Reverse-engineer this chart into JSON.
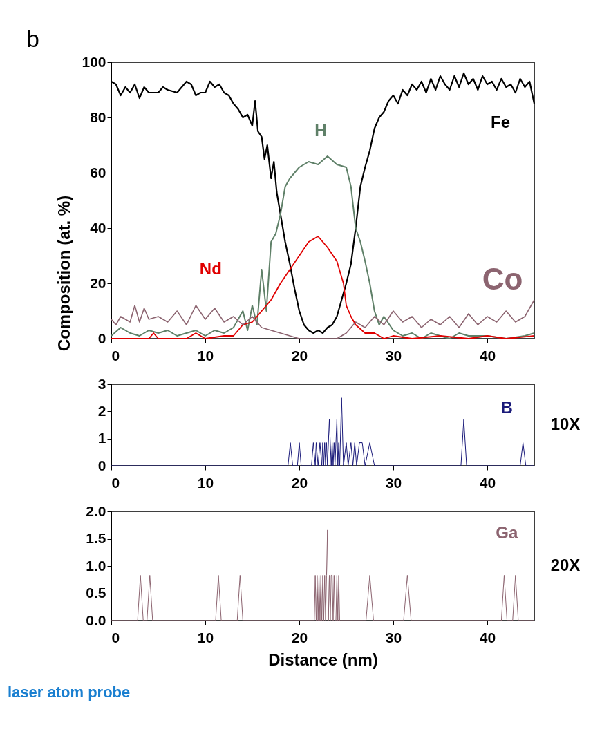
{
  "chart_data": [
    {
      "type": "line",
      "ylabel": "Composition (at. %)",
      "xlim": [
        0,
        45
      ],
      "ylim": [
        0,
        100
      ],
      "xticks": [
        0,
        10,
        20,
        30,
        40
      ],
      "yticks": [
        0,
        20,
        40,
        60,
        80,
        100
      ],
      "grid": false,
      "legend": false,
      "annotations": [
        "b"
      ],
      "series": [
        {
          "name": "Fe",
          "color": "#000000",
          "x": [
            0,
            0.5,
            1,
            1.5,
            2,
            2.5,
            3,
            3.5,
            4,
            5,
            5.5,
            6,
            7,
            8,
            8.5,
            9,
            9.5,
            10,
            10.5,
            11,
            11.5,
            12,
            12.5,
            13,
            13.5,
            14,
            14.5,
            15,
            15.3,
            15.6,
            16,
            16.3,
            16.6,
            17,
            17.3,
            17.6,
            18,
            18.5,
            19,
            19.5,
            20,
            20.5,
            21,
            21.5,
            22,
            22.5,
            23,
            23.5,
            24,
            24.5,
            25,
            25.5,
            26,
            26.5,
            27,
            27.5,
            28,
            28.5,
            29,
            29.5,
            30,
            30.5,
            31,
            31.5,
            32,
            32.5,
            33,
            33.5,
            34,
            34.5,
            35,
            35.5,
            36,
            36.5,
            37,
            37.5,
            38,
            38.5,
            39,
            39.5,
            40,
            40.5,
            41,
            41.5,
            42,
            42.5,
            43,
            43.5,
            44,
            44.5,
            45
          ],
          "values": [
            93,
            92,
            88,
            91,
            89,
            92,
            87,
            91,
            89,
            89,
            91,
            90,
            89,
            93,
            92,
            88,
            89,
            89,
            93,
            91,
            92,
            89,
            88,
            85,
            83,
            80,
            81,
            77,
            86,
            75,
            73,
            65,
            70,
            58,
            64,
            53,
            45,
            35,
            27,
            18,
            10,
            5,
            3,
            2,
            3,
            2,
            4,
            5,
            8,
            14,
            20,
            27,
            40,
            55,
            62,
            68,
            76,
            80,
            82,
            86,
            88,
            85,
            90,
            88,
            92,
            90,
            93,
            89,
            94,
            90,
            95,
            92,
            90,
            95,
            91,
            96,
            92,
            94,
            90,
            95,
            92,
            93,
            90,
            94,
            91,
            92,
            89,
            94,
            91,
            93,
            85
          ]
        },
        {
          "name": "H",
          "color": "#5f8068",
          "x": [
            0,
            1,
            2,
            3,
            4,
            5,
            6,
            7,
            8,
            9,
            10,
            11,
            12,
            13,
            14,
            14.5,
            15,
            15.5,
            16,
            16.5,
            17,
            17.5,
            18,
            18.5,
            19,
            19.5,
            20,
            21,
            22,
            23,
            24,
            25,
            25.5,
            26,
            26.5,
            27,
            27.5,
            28,
            28.5,
            29,
            30,
            31,
            32,
            33,
            34,
            35,
            36,
            37,
            38,
            40,
            42,
            44,
            45
          ],
          "values": [
            1,
            4,
            2,
            1,
            3,
            2,
            3,
            1,
            2,
            3,
            1,
            3,
            2,
            4,
            10,
            3,
            12,
            5,
            25,
            10,
            35,
            38,
            45,
            55,
            58,
            60,
            62,
            64,
            63,
            66,
            63,
            62,
            55,
            40,
            35,
            28,
            20,
            10,
            5,
            8,
            3,
            1,
            2,
            0,
            2,
            1,
            0,
            2,
            1,
            1,
            0,
            1,
            2
          ]
        },
        {
          "name": "Nd",
          "color": "#e00000",
          "x": [
            0,
            4,
            4.5,
            5,
            8,
            9,
            10,
            12,
            13,
            14,
            15,
            16,
            17,
            18,
            19,
            20,
            21,
            22,
            23,
            24,
            24.7,
            25,
            25.5,
            26,
            27,
            28,
            29,
            30,
            32,
            35,
            38,
            40,
            42,
            45
          ],
          "values": [
            0,
            0,
            2,
            0,
            0,
            2,
            0,
            1,
            1,
            5,
            6,
            10,
            14,
            20,
            25,
            30,
            35,
            37,
            33,
            28,
            20,
            12,
            8,
            5,
            2,
            2,
            0,
            1,
            0,
            1,
            0,
            1,
            0,
            1
          ]
        },
        {
          "name": "Co",
          "color": "#8c6470",
          "x": [
            0,
            0.5,
            1,
            2,
            2.5,
            3,
            3.5,
            4,
            5,
            6,
            7,
            8,
            9,
            10,
            11,
            12,
            13,
            14,
            15,
            16,
            17,
            18,
            19,
            20,
            22,
            24,
            25,
            26,
            27,
            28,
            29,
            30,
            31,
            32,
            33,
            34,
            35,
            36,
            37,
            38,
            39,
            40,
            41,
            42,
            43,
            44,
            45
          ],
          "values": [
            7,
            5,
            8,
            6,
            12,
            6,
            11,
            7,
            8,
            6,
            10,
            5,
            12,
            7,
            11,
            6,
            8,
            5,
            8,
            4,
            3,
            2,
            1,
            0,
            0,
            0,
            2,
            6,
            4,
            8,
            5,
            10,
            6,
            8,
            4,
            7,
            5,
            8,
            4,
            9,
            5,
            8,
            6,
            10,
            6,
            8,
            14
          ]
        }
      ]
    },
    {
      "type": "line",
      "xlim": [
        0,
        45
      ],
      "ylim": [
        0,
        3
      ],
      "xticks": [
        0,
        10,
        20,
        30,
        40
      ],
      "yticks": [
        0,
        1,
        2,
        3
      ],
      "grid": false,
      "legend": false,
      "annotations": [
        "10X"
      ],
      "series": [
        {
          "name": "B",
          "color": "#1a1a7a",
          "x": [
            0,
            18.8,
            19.05,
            19.3,
            19.8,
            20.0,
            20.2,
            21.3,
            21.5,
            21.7,
            21.8,
            22.0,
            22.2,
            22.4,
            22.5,
            22.6,
            22.7,
            22.8,
            22.9,
            23.0,
            23.2,
            23.4,
            23.5,
            23.6,
            23.7,
            23.8,
            24.0,
            24.1,
            24.2,
            24.3,
            24.5,
            24.7,
            25.0,
            25.2,
            25.5,
            25.7,
            25.9,
            26.1,
            26.4,
            26.7,
            27.0,
            27.5,
            28.0,
            37.2,
            37.5,
            37.8,
            43.5,
            43.8,
            44.1,
            45
          ],
          "values": [
            0,
            0,
            0.85,
            0,
            0,
            0.85,
            0,
            0,
            0.85,
            0,
            0.85,
            0,
            0.85,
            0,
            0.85,
            0,
            0.85,
            0,
            0.85,
            0,
            1.7,
            0,
            0.85,
            0,
            0.85,
            0,
            1.7,
            0,
            0.85,
            0,
            2.5,
            0,
            0.85,
            0,
            0.85,
            0,
            0.85,
            0,
            0.85,
            0.85,
            0,
            0.85,
            0,
            0,
            1.7,
            0,
            0,
            0.85,
            0,
            0
          ]
        }
      ]
    },
    {
      "type": "line",
      "xlabel": "Distance (nm)",
      "xlim": [
        0,
        45
      ],
      "ylim": [
        0,
        2
      ],
      "xticks": [
        0,
        10,
        20,
        30,
        40
      ],
      "yticks": [
        {
          "value": 0,
          "label": "0.0"
        },
        {
          "value": 0.5,
          "label": "0.5"
        },
        {
          "value": 1,
          "label": "1.0"
        },
        {
          "value": 1.5,
          "label": "1.5"
        },
        {
          "value": 2,
          "label": "2.0"
        }
      ],
      "grid": false,
      "legend": false,
      "annotations": [
        "20X",
        "laser atom probe"
      ],
      "series": [
        {
          "name": "Ga",
          "color": "#8c6470",
          "x": [
            0,
            2.8,
            3.1,
            3.4,
            3.8,
            4.1,
            4.4,
            11.1,
            11.4,
            11.7,
            13.4,
            13.7,
            14.0,
            21.6,
            21.7,
            21.8,
            21.9,
            22.0,
            22.1,
            22.2,
            22.3,
            22.4,
            22.5,
            22.6,
            22.7,
            22.8,
            22.9,
            23.0,
            23.1,
            23.2,
            23.3,
            23.4,
            23.5,
            23.6,
            23.7,
            23.8,
            23.9,
            24.0,
            24.1,
            24.2,
            24.3,
            24.4,
            27.1,
            27.5,
            27.9,
            31.1,
            31.5,
            31.9,
            41.5,
            41.8,
            42.1,
            42.7,
            43.0,
            43.3,
            45
          ],
          "values": [
            0,
            0,
            0.83,
            0,
            0,
            0.83,
            0,
            0,
            0.83,
            0,
            0,
            0.83,
            0,
            0,
            0.83,
            0,
            0.83,
            0,
            0.83,
            0,
            0.83,
            0,
            0.83,
            0,
            0.83,
            0,
            0.83,
            1.66,
            0,
            0.83,
            0,
            0.83,
            0.83,
            0,
            0.83,
            0,
            0,
            0.83,
            0,
            0.83,
            0,
            0,
            0,
            0.83,
            0,
            0,
            0.83,
            0,
            0,
            0.83,
            0,
            0,
            0.83,
            0,
            0
          ]
        }
      ]
    }
  ]
}
